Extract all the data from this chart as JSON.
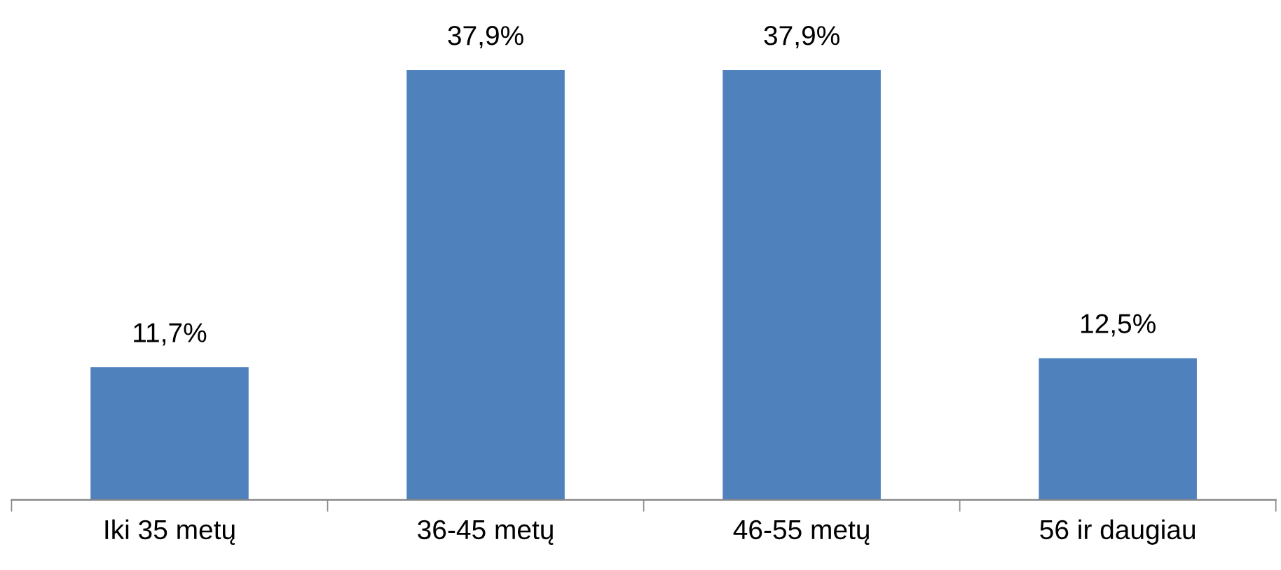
{
  "chart_data": {
    "type": "bar",
    "categories": [
      "Iki 35 metų",
      "36-45 metų",
      "46-55 metų",
      "56 ir daugiau"
    ],
    "values": [
      11.7,
      37.9,
      37.9,
      12.5
    ],
    "value_labels": [
      "11,7%",
      "37,9%",
      "37,9%",
      "12,5%"
    ],
    "color": "#4f81bd",
    "grid": false,
    "legend": false
  }
}
